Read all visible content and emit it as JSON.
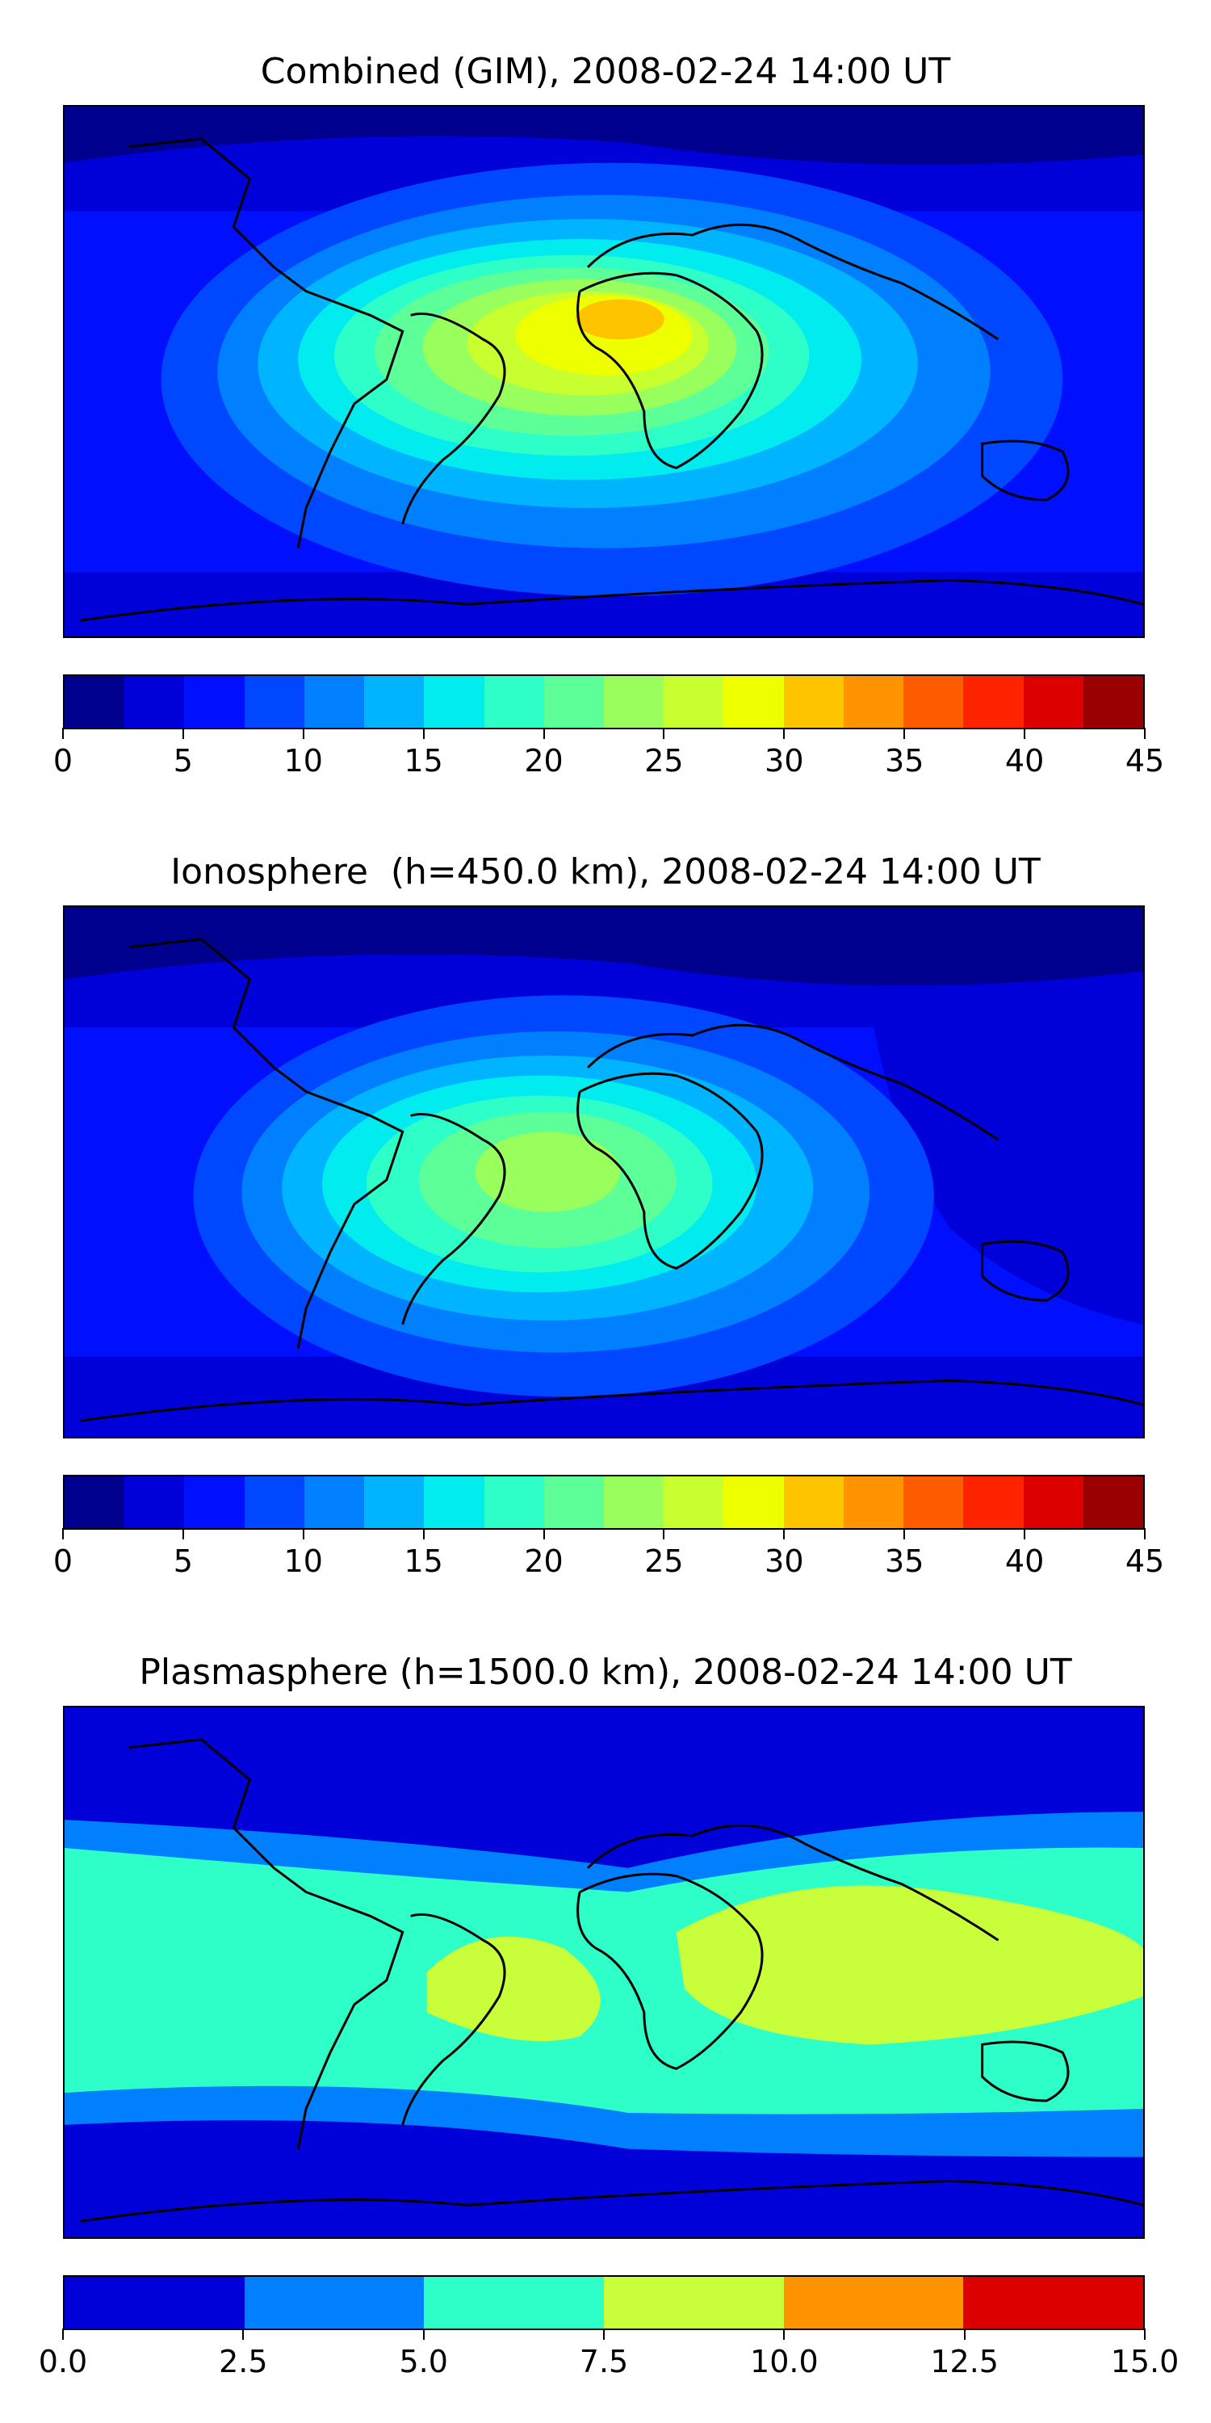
{
  "panels": [
    {
      "title": "Combined (GIM), 2008-02-24 14:00 UT",
      "colorbar": {
        "min": 0,
        "max": 45,
        "colors": [
          "#00008f",
          "#0000d8",
          "#0010ff",
          "#0048ff",
          "#0080ff",
          "#00b4ff",
          "#00ecee",
          "#2effc8",
          "#5cff98",
          "#98ff5c",
          "#c8ff2e",
          "#eeff00",
          "#ffc400",
          "#ff9400",
          "#ff5c00",
          "#ff2400",
          "#dd0000",
          "#9a0000"
        ],
        "ticks": [
          "0",
          "5",
          "10",
          "15",
          "20",
          "25",
          "30",
          "35",
          "40",
          "45"
        ],
        "tick_values": [
          0,
          5,
          10,
          15,
          20,
          25,
          30,
          35,
          40,
          45
        ]
      }
    },
    {
      "title": "Ionosphere  (h=450.0 km), 2008-02-24 14:00 UT",
      "colorbar": {
        "min": 0,
        "max": 45,
        "colors": [
          "#00008f",
          "#0000d8",
          "#0010ff",
          "#0048ff",
          "#0080ff",
          "#00b4ff",
          "#00ecee",
          "#2effc8",
          "#5cff98",
          "#98ff5c",
          "#c8ff2e",
          "#eeff00",
          "#ffc400",
          "#ff9400",
          "#ff5c00",
          "#ff2400",
          "#dd0000",
          "#9a0000"
        ],
        "ticks": [
          "0",
          "5",
          "10",
          "15",
          "20",
          "25",
          "30",
          "35",
          "40",
          "45"
        ],
        "tick_values": [
          0,
          5,
          10,
          15,
          20,
          25,
          30,
          35,
          40,
          45
        ]
      }
    },
    {
      "title": "Plasmasphere (h=1500.0 km), 2008-02-24 14:00 UT",
      "colorbar": {
        "min": 0,
        "max": 15,
        "colors": [
          "#0000d8",
          "#0080ff",
          "#2effc8",
          "#c8ff3a",
          "#ff9400",
          "#dd0000"
        ],
        "ticks": [
          "0.0",
          "2.5",
          "5.0",
          "7.5",
          "10.0",
          "12.5",
          "15.0"
        ],
        "tick_values": [
          0,
          2.5,
          5,
          7.5,
          10,
          12.5,
          15
        ]
      }
    }
  ]
}
